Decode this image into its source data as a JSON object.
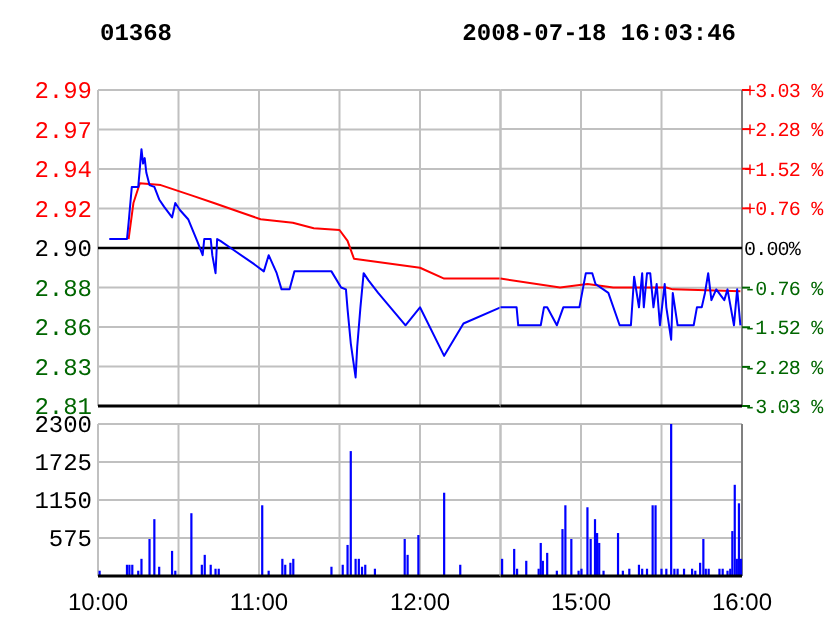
{
  "chart_data": [
    {
      "type": "line",
      "title": "01368",
      "xlim": [
        10,
        12.5
      ],
      "ylim": [
        2.8121,
        2.9879
      ],
      "yticks": [
        {
          "value": 2.8121,
          "label": "2.81"
        },
        {
          "value": 2.8341,
          "label": "2.83"
        },
        {
          "value": 2.8561,
          "label": "2.86"
        },
        {
          "value": 2.878,
          "label": "2.88"
        },
        {
          "value": 2.9,
          "label": "2.90"
        },
        {
          "value": 2.922,
          "label": "2.92"
        },
        {
          "value": 2.9439,
          "label": "2.94"
        },
        {
          "value": 2.9659,
          "label": "2.97"
        },
        {
          "value": 2.9879,
          "label": "2.99"
        }
      ],
      "tick_labels": "y",
      "grid": true,
      "ref_lines": [
        {
          "axis": "y",
          "value": 2.9,
          "color": "#000000"
        }
      ],
      "series": [
        {
          "color": "#ff0000",
          "x": [
            10.19,
            10.22,
            10.26,
            10.39,
            10.59,
            10.72,
            10.88,
            11.01,
            11.21,
            11.34,
            11.5,
            11.55,
            11.59,
            12,
            12.15,
            12.5
          ],
          "values": [
            2.905,
            2.925,
            2.936,
            2.935,
            2.929,
            2.925,
            2.92,
            2.916,
            2.914,
            2.911,
            2.91,
            2.904,
            2.894,
            2.889,
            2.883,
            2.883
          ]
        },
        {
          "color": "#0000ff",
          "x": [
            10.07,
            10.18,
            10.19,
            10.21,
            10.25,
            10.27,
            10.28,
            10.29,
            10.3,
            10.32,
            10.35,
            10.38,
            10.41,
            10.46,
            10.48,
            10.51,
            10.56,
            10.62,
            10.65,
            10.66,
            10.7,
            10.71,
            10.73,
            10.74,
            10.76,
            10.84,
            10.97,
            11.03,
            11.06,
            11.11,
            11.14,
            11.19,
            11.22,
            11.45,
            11.51,
            11.54,
            11.55,
            11.57,
            11.6,
            11.61,
            11.63,
            11.65,
            11.68,
            11.74,
            11.91,
            12,
            12.15,
            12.27,
            12.5
          ],
          "values": [
            2.905,
            2.905,
            2.914,
            2.934,
            2.934,
            2.955,
            2.947,
            2.95,
            2.942,
            2.935,
            2.934,
            2.927,
            2.923,
            2.917,
            2.925,
            2.921,
            2.916,
            2.903,
            2.896,
            2.905,
            2.905,
            2.896,
            2.886,
            2.905,
            2.904,
            2.899,
            2.891,
            2.887,
            2.896,
            2.886,
            2.877,
            2.877,
            2.887,
            2.887,
            2.878,
            2.877,
            2.866,
            2.847,
            2.828,
            2.845,
            2.867,
            2.886,
            2.882,
            2.875,
            2.857,
            2.867,
            2.84,
            2.858,
            2.867
          ]
        }
      ]
    },
    {
      "type": "line",
      "subtitle": "2008-07-18 16:03:46",
      "xlim": [
        14.5,
        16
      ],
      "ylim": [
        2.8121,
        2.9879
      ],
      "y2lim": [
        -3.03,
        3.03
      ],
      "y2ticks": [
        {
          "value": -3.03,
          "label": "-3.03 %"
        },
        {
          "value": -2.28,
          "label": "-2.28 %"
        },
        {
          "value": -1.52,
          "label": "-1.52 %"
        },
        {
          "value": -0.76,
          "label": "-0.76 %"
        },
        {
          "value": 0,
          "label": "0.00%"
        },
        {
          "value": 0.76,
          "label": "+0.76 %"
        },
        {
          "value": 1.52,
          "label": "+1.52 %"
        },
        {
          "value": 2.28,
          "label": "+2.28 %"
        },
        {
          "value": 3.03,
          "label": "+3.03 %"
        }
      ],
      "tick_labels": "y",
      "grid": true,
      "ref_lines": [
        {
          "axis": "y",
          "value": 2.9,
          "color": "#000000"
        }
      ],
      "series": [
        {
          "color": "#ff0000",
          "x": [
            14.5,
            14.87,
            15.04,
            15.2,
            15.53,
            15.57,
            15.99
          ],
          "values": [
            2.883,
            2.878,
            2.88,
            2.878,
            2.878,
            2.877,
            2.876
          ]
        },
        {
          "color": "#0000ff",
          "x": [
            14.5,
            14.6,
            14.61,
            14.75,
            14.77,
            14.79,
            14.85,
            14.89,
            14.99,
            15.03,
            15.07,
            15.09,
            15.17,
            15.24,
            15.31,
            15.33,
            15.36,
            15.38,
            15.39,
            15.41,
            15.43,
            15.45,
            15.47,
            15.49,
            15.52,
            15.53,
            15.56,
            15.57,
            15.6,
            15.7,
            15.72,
            15.75,
            15.77,
            15.79,
            15.81,
            15.84,
            15.89,
            15.91,
            15.95,
            15.97,
            15.99
          ],
          "values": [
            2.867,
            2.867,
            2.857,
            2.857,
            2.867,
            2.867,
            2.857,
            2.867,
            2.867,
            2.886,
            2.886,
            2.88,
            2.875,
            2.857,
            2.857,
            2.884,
            2.867,
            2.886,
            2.867,
            2.886,
            2.886,
            2.867,
            2.88,
            2.857,
            2.88,
            2.867,
            2.849,
            2.875,
            2.857,
            2.857,
            2.867,
            2.867,
            2.875,
            2.886,
            2.871,
            2.877,
            2.871,
            2.877,
            2.857,
            2.877,
            2.857
          ]
        }
      ]
    },
    {
      "type": "bar",
      "color": "#0000ff",
      "xlim": [
        10,
        12.5
      ],
      "xticks": [
        {
          "value": 10,
          "label": "10:00"
        },
        {
          "value": 10.5,
          "label": null
        },
        {
          "value": 11,
          "label": "11:00"
        },
        {
          "value": 11.5,
          "label": null
        },
        {
          "value": 12,
          "label": "12:00"
        },
        {
          "value": 12.5,
          "label": null
        }
      ],
      "ylim": [
        0,
        2300
      ],
      "yticks": [
        575,
        1150,
        1725,
        2300
      ],
      "grid": true,
      "x": [
        10.01,
        10.18,
        10.195,
        10.213,
        10.25,
        10.27,
        10.32,
        10.35,
        10.38,
        10.46,
        10.48,
        10.58,
        10.645,
        10.663,
        10.7,
        10.73,
        10.75,
        11.02,
        11.06,
        11.145,
        11.163,
        11.195,
        11.213,
        11.45,
        11.52,
        11.55,
        11.57,
        11.6,
        11.62,
        11.64,
        11.66,
        11.72,
        11.905,
        11.923,
        11.99,
        12.15,
        12.25
      ],
      "values": [
        80,
        170,
        170,
        170,
        80,
        260,
        560,
        860,
        140,
        380,
        80,
        950,
        170,
        320,
        170,
        110,
        110,
        1070,
        80,
        260,
        170,
        200,
        260,
        140,
        170,
        470,
        1890,
        260,
        260,
        140,
        170,
        110,
        560,
        320,
        620,
        1260,
        170
      ]
    },
    {
      "type": "bar",
      "color": "#0000ff",
      "xlim": [
        14.5,
        16
      ],
      "xticks": [
        {
          "value": 14.5,
          "label": null
        },
        {
          "value": 15,
          "label": "15:00"
        },
        {
          "value": 15.5,
          "label": null
        },
        {
          "value": 16,
          "label": "16:00"
        }
      ],
      "ylim": [
        0,
        2300
      ],
      "yticks": [
        575,
        1150,
        1725,
        2300
      ],
      "grid": true,
      "tick_labels": "x",
      "x": [
        14.51,
        14.585,
        14.603,
        14.66,
        14.737,
        14.75,
        14.763,
        14.79,
        14.85,
        14.885,
        14.903,
        14.94,
        14.985,
        15.003,
        15.04,
        15.06,
        15.087,
        15.1,
        15.113,
        15.14,
        15.23,
        15.26,
        15.3,
        15.36,
        15.38,
        15.41,
        15.445,
        15.463,
        15.5,
        15.53,
        15.56,
        15.58,
        15.6,
        15.64,
        15.69,
        15.71,
        15.74,
        15.76,
        15.775,
        15.793,
        15.86,
        15.88,
        15.91,
        15.927,
        15.94,
        15.955,
        15.968,
        15.981,
        15.994
      ],
      "values": [
        260,
        410,
        110,
        230,
        110,
        500,
        230,
        350,
        80,
        710,
        1070,
        560,
        80,
        110,
        1040,
        560,
        860,
        650,
        500,
        80,
        650,
        80,
        110,
        170,
        110,
        110,
        1070,
        1070,
        110,
        110,
        2300,
        110,
        110,
        110,
        110,
        80,
        200,
        560,
        110,
        110,
        110,
        110,
        80,
        110,
        680,
        1380,
        260,
        1100,
        260
      ]
    }
  ]
}
